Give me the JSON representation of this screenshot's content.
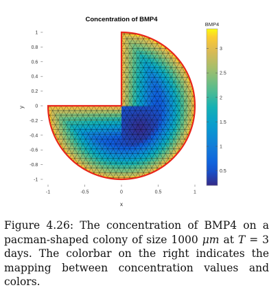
{
  "chart_data": {
    "type": "heatmap",
    "title": "Concentration of BMP4",
    "xlabel": "x",
    "ylabel": "y",
    "xlim": [
      -1.1,
      1.1
    ],
    "ylim": [
      -1.1,
      1.1
    ],
    "x_ticks": [
      "-1",
      "-0.5",
      "0",
      "0.5",
      "1"
    ],
    "x_tick_values": [
      -1,
      -0.5,
      0,
      0.5,
      1
    ],
    "y_ticks": [
      "1",
      "0.8",
      "0.6",
      "0.4",
      "0.2",
      "0",
      "-0.2",
      "-0.4",
      "-0.6",
      "-0.8",
      "-1"
    ],
    "y_tick_values": [
      1,
      0.8,
      0.6,
      0.4,
      0.2,
      0,
      -0.2,
      -0.4,
      -0.6,
      -0.8,
      -1
    ],
    "domain_shape": "pacman (unit disk with upper-left quadrant removed)",
    "field": {
      "min_value": 0.2,
      "max_value": 3.4,
      "center_of_minimum": [
        0.25,
        -0.3
      ],
      "boundary_value": 3.3
    },
    "colorbar": {
      "title": "BMP4",
      "range": [
        0.2,
        3.4
      ],
      "ticks": [
        "3",
        "2.5",
        "2",
        "1.5",
        "1",
        "0.5"
      ],
      "tick_values": [
        3,
        2.5,
        2,
        1.5,
        1,
        0.5
      ],
      "colormap": "parula"
    },
    "colors": {
      "boundary": "#e8261b",
      "mesh": "#000000"
    }
  },
  "caption": {
    "figure_label": "Figure 4.26:",
    "text_before_unit": "The concentration of BMP4 on a pacman-shaped colony of size 1000",
    "unit": "μm",
    "text_mid": "at",
    "time_var": "T",
    "text_after": "= 3 days. The colorbar on the right indicates the mapping between concentration values and colors."
  }
}
